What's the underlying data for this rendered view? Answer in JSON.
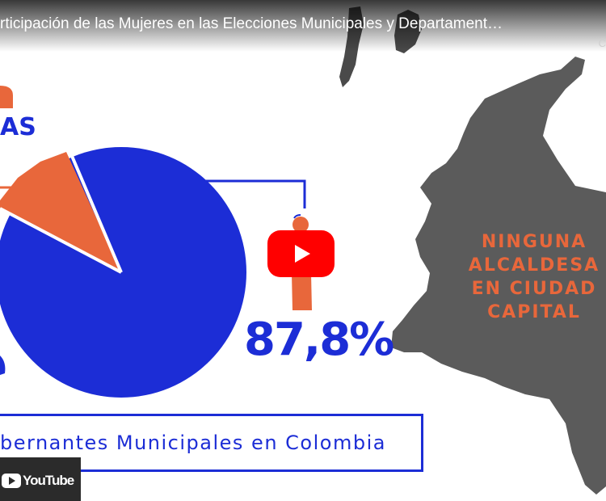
{
  "video": {
    "title": "rticipación de las Mujeres en las Elecciones Municipales y Departament…",
    "top_right_letter": "C"
  },
  "infographic": {
    "partial_heading": "AS",
    "percent": "87,8%",
    "map_text_lines": [
      "NINGUNA",
      "ALCALDESA",
      "EN CIUDAD",
      "CAPITAL"
    ],
    "caption": "bernantes Municipales en Colombia",
    "pie_share_blue_percent": 87.8
  },
  "player": {
    "watermark_label": "YouTube"
  },
  "colors": {
    "blue": "#1c2dd6",
    "orange": "#e8673b",
    "map_gray": "#5b5b5b",
    "play_red": "#ff0000"
  }
}
